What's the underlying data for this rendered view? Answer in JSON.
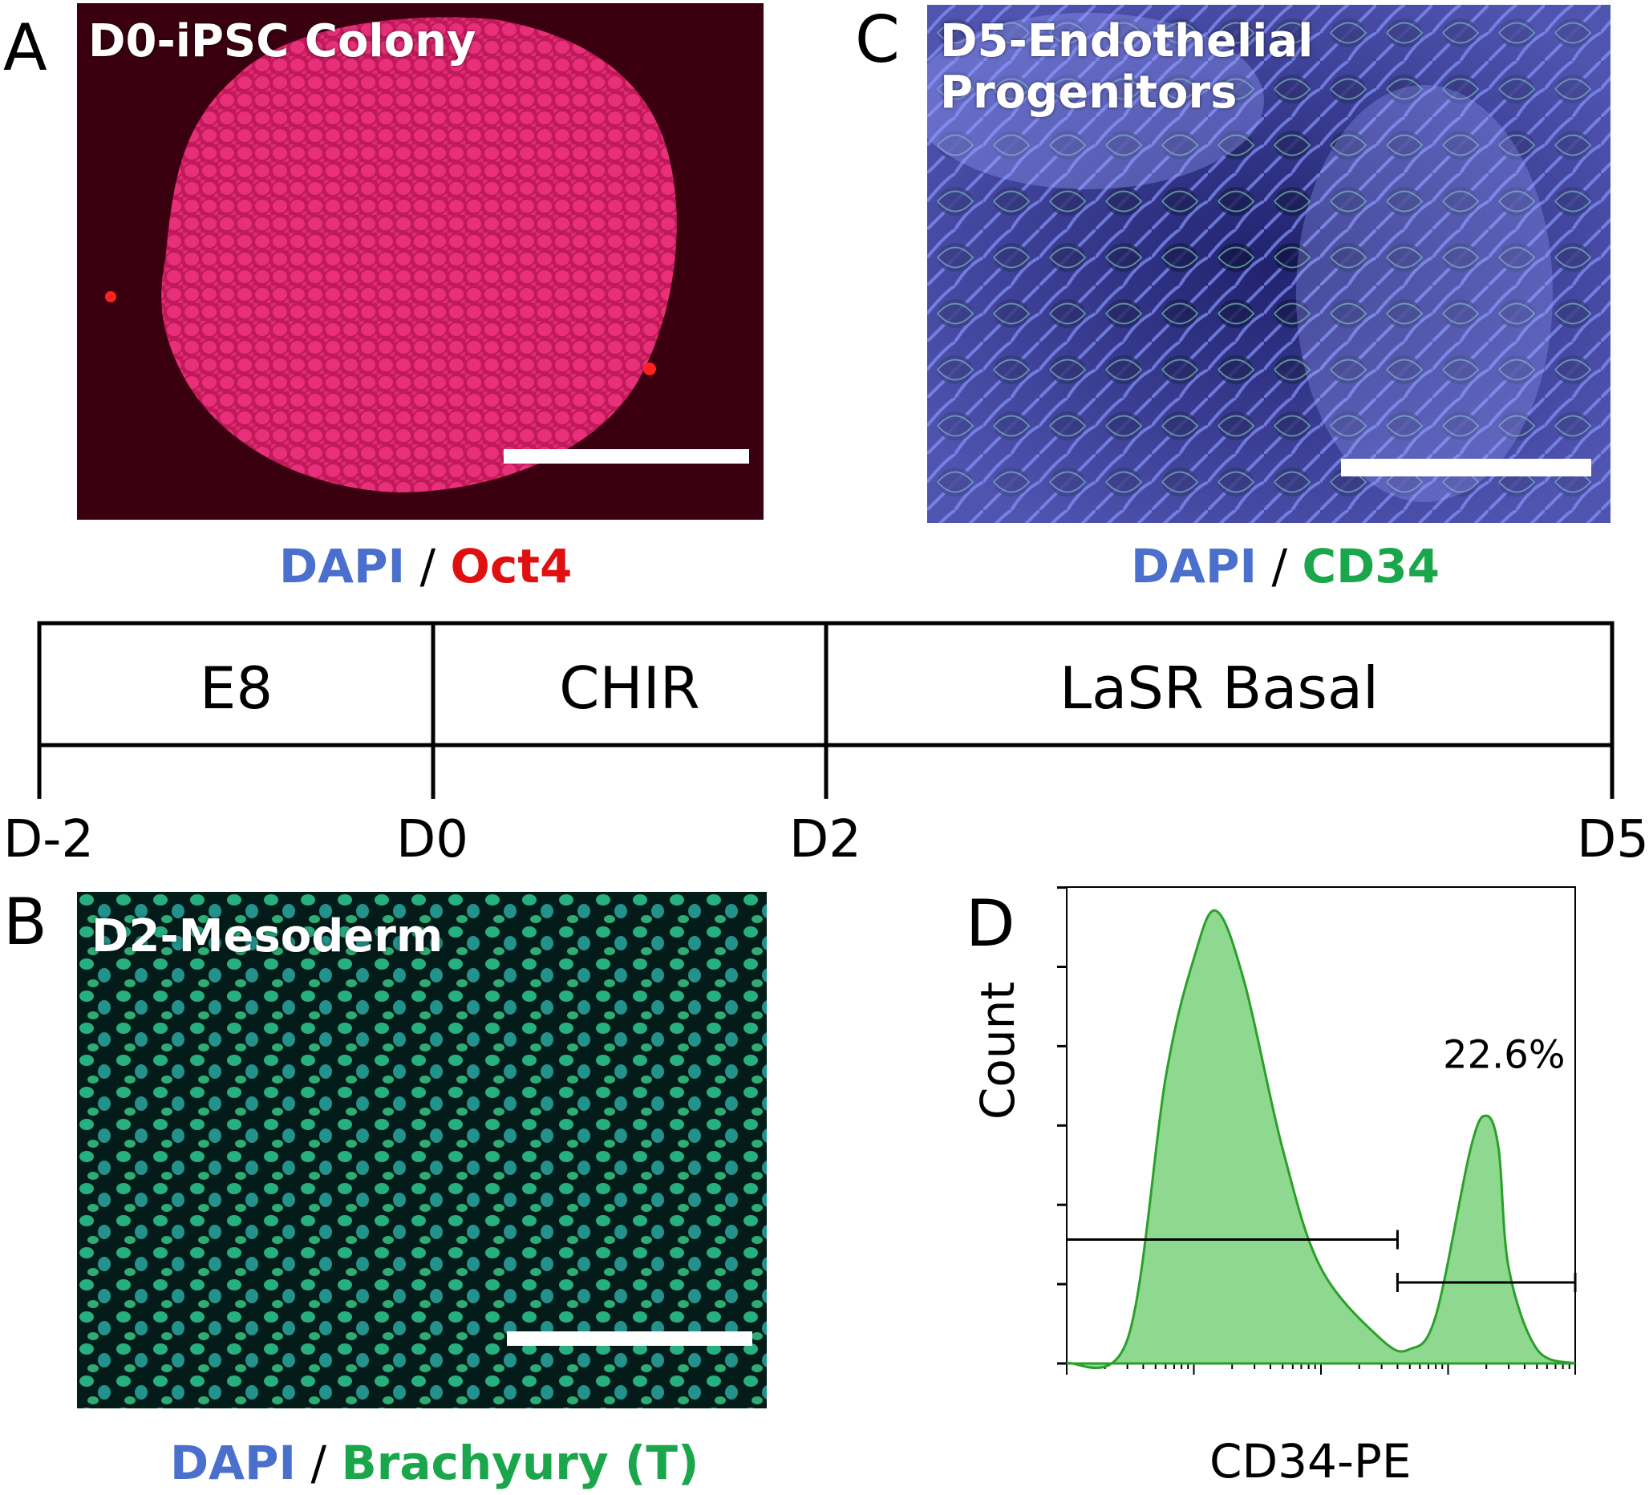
{
  "panels": {
    "A": {
      "letter": "A",
      "title": "D0-iPSC Colony",
      "stain": {
        "blue": "DAPI",
        "sep": " / ",
        "other": "Oct4",
        "other_color": "#e01010"
      }
    },
    "B": {
      "letter": "B",
      "title": "D2-Mesoderm",
      "stain": {
        "blue": "DAPI",
        "sep": " / ",
        "other": "Brachyury (T)",
        "other_color": "#1aa64a"
      }
    },
    "C": {
      "letter": "C",
      "title_line1": "D5-Endothelial",
      "title_line2": "Progenitors",
      "stain": {
        "blue": "DAPI",
        "sep": " / ",
        "other": "CD34",
        "other_color": "#1aa64a"
      }
    },
    "D": {
      "letter": "D"
    }
  },
  "colors": {
    "dapi_blue": "#4a6fcc",
    "panel_a_bg": "#3a0010",
    "panel_a_cells": "#e0206a",
    "panel_b_bg": "#031c1a",
    "panel_b_cells": "#2bbf8a",
    "panel_c_bg": "#1a1a66",
    "panel_c_net": "#7a86e8",
    "hist_fill": "#8fd88f",
    "hist_line": "#2aa02a"
  },
  "timeline": {
    "stages": [
      "E8",
      "CHIR",
      "LaSR Basal"
    ],
    "days": [
      "D-2",
      "D0",
      "D2",
      "D5"
    ]
  },
  "chart_data": {
    "type": "area",
    "title": "",
    "xlabel": "CD34-PE",
    "ylabel": "Count",
    "x_scale": "log",
    "series": [
      {
        "values_note": "",
        "x": [
          10,
          30,
          60,
          100,
          150,
          250,
          500,
          1000,
          3000,
          5000,
          8000,
          15000,
          20000,
          25000,
          30000,
          50000,
          100000
        ],
        "y": [
          0,
          5,
          60,
          85,
          95,
          80,
          45,
          20,
          5,
          3,
          10,
          45,
          52,
          45,
          20,
          3,
          0
        ]
      }
    ],
    "gates": [
      {
        "label": "",
        "from": 10,
        "to": 4000
      },
      {
        "label": "22.6%",
        "from": 4000,
        "to": 100000
      }
    ]
  }
}
